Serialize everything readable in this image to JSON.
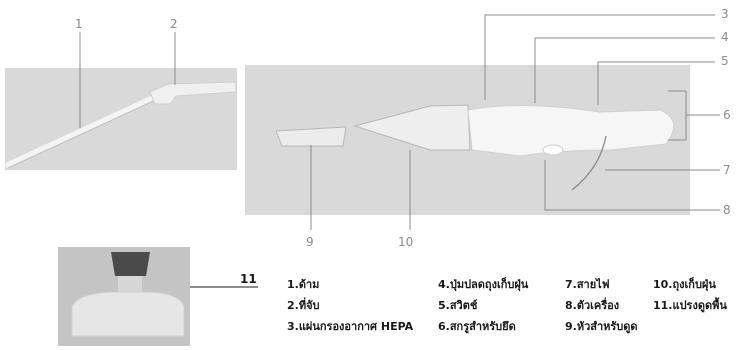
{
  "callouts": [
    "1",
    "2",
    "3",
    "4",
    "5",
    "6",
    "7",
    "8",
    "9",
    "10",
    "11"
  ],
  "legend": {
    "col1": [
      "1.ด้าม",
      "2.ที่จับ",
      "3.แผ่นกรองอากาศ HEPA"
    ],
    "col2": [
      "4.ปุ่มปลดถุงเก็บฝุ่น",
      "5.สวิตช์",
      "6.สกรูสำหรับยึด"
    ],
    "col3": [
      "7.สายไฟ",
      "8.ตัวเครื่อง",
      "9.หัวสำหรับดูด"
    ],
    "col4": [
      "10.ถุงเก็บฝุ่น",
      "11.แปรงดูดพื้น"
    ]
  },
  "colors": {
    "panel": "#d9d9d9",
    "line": "#8c8c8c",
    "text": "#1a1a1a",
    "photo_bg": "#c4c4c4",
    "product": "#e6e6e6"
  }
}
